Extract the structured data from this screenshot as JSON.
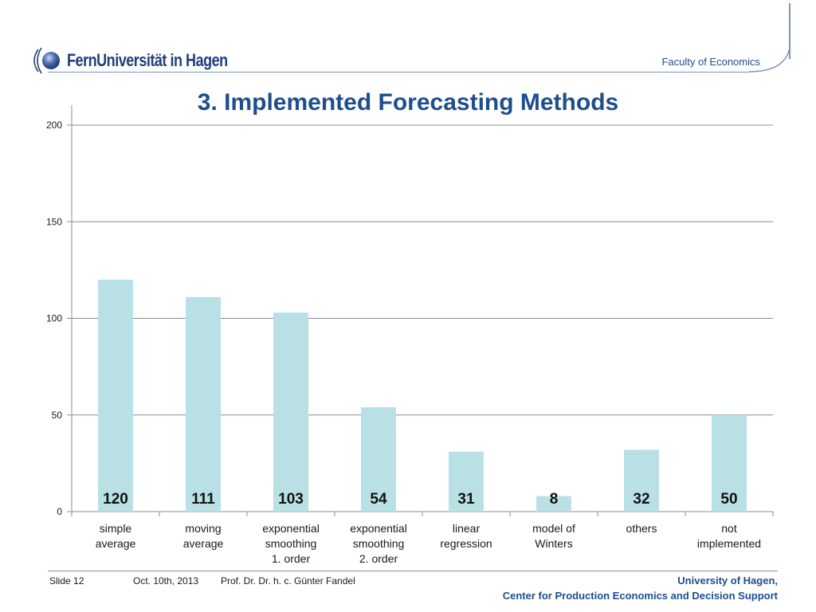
{
  "header": {
    "logo_text": "FernUniversität in Hagen",
    "faculty": "Faculty of Economics"
  },
  "slide": {
    "title": "3. Implemented Forecasting Methods"
  },
  "chart_data": {
    "type": "bar",
    "categories": [
      "simple\naverage",
      "moving\naverage",
      "exponential\nsmoothing\n1. order",
      "exponential\nsmoothing\n2. order",
      "linear\nregression",
      "model of\nWinters",
      "others",
      "not\nimplemented"
    ],
    "values": [
      120,
      111,
      103,
      54,
      31,
      8,
      32,
      50
    ],
    "data_labels": [
      "120",
      "111",
      "103",
      "54",
      "31",
      "8",
      "32",
      "50"
    ],
    "yticks": [
      0,
      50,
      100,
      150,
      200
    ],
    "ylim": [
      0,
      200
    ],
    "grid": true,
    "bar_color": "#b9e0e4"
  },
  "footer": {
    "slide_label": "Slide 12",
    "date": "Oct. 10th, 2013",
    "author": "Prof. Dr. Dr. h. c. Günter Fandel",
    "university": "University of Hagen,",
    "center": "Center for Production Economics and Decision Support"
  }
}
